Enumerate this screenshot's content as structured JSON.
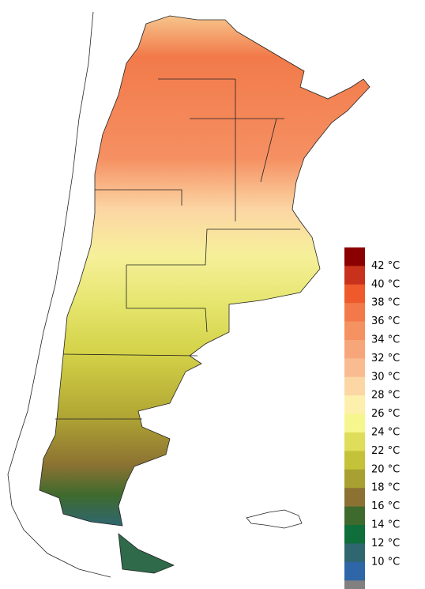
{
  "legend": {
    "items": [
      {
        "color": "#8b0000"
      },
      {
        "label": "42 °C",
        "color": "#c8321c"
      },
      {
        "label": "40 °C",
        "color": "#ee5a2c"
      },
      {
        "label": "38 °C",
        "color": "#f27a4a"
      },
      {
        "label": "36 °C",
        "color": "#f59262"
      },
      {
        "label": "34 °C",
        "color": "#f7a67a"
      },
      {
        "label": "32 °C",
        "color": "#f9bc90"
      },
      {
        "label": "30 °C",
        "color": "#fcd6a4"
      },
      {
        "label": "28 °C",
        "color": "#fdf0ac"
      },
      {
        "label": "26 °C",
        "color": "#f6f68e"
      },
      {
        "label": "24 °C",
        "color": "#dede5a"
      },
      {
        "label": "22 °C",
        "color": "#c4c238"
      },
      {
        "label": "20 °C",
        "color": "#a8a030"
      },
      {
        "label": "18 °C",
        "color": "#8c7232"
      },
      {
        "label": "16 °C",
        "color": "#3f6a2e"
      },
      {
        "label": "14 °C",
        "color": "#0f6e3a"
      },
      {
        "label": "12 °C",
        "color": "#2f6670"
      },
      {
        "label": "10 °C",
        "color": "#2e66a8"
      },
      {
        "color": "#808080"
      }
    ]
  }
}
